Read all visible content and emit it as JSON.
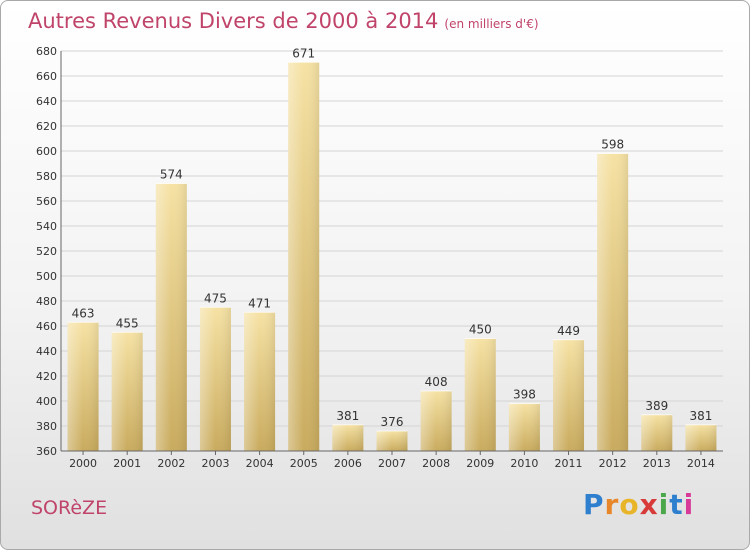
{
  "title": "Autres Revenus Divers de 2000 à 2014",
  "title_unit": "(en milliers d'€)",
  "commune": "SORèZE",
  "logo": {
    "text": "Proxiti",
    "letters": [
      "P",
      "r",
      "o",
      "x",
      "i",
      "t",
      "i"
    ],
    "colors": [
      "#2f7fcf",
      "#e8862a",
      "#e8b428",
      "#d83a3a",
      "#4aa84a",
      "#2f7fcf",
      "#d83a9a"
    ]
  },
  "colors": {
    "title": "#c0446a",
    "bar_light": "#f6e2a4",
    "bar_dark": "#c9ab5e",
    "grid": "#d4d4d4"
  },
  "chart_data": {
    "type": "bar",
    "categories": [
      "2000",
      "2001",
      "2002",
      "2003",
      "2004",
      "2005",
      "2006",
      "2007",
      "2008",
      "2009",
      "2010",
      "2011",
      "2012",
      "2013",
      "2014"
    ],
    "values": [
      463,
      455,
      574,
      475,
      471,
      671,
      381,
      376,
      408,
      450,
      398,
      449,
      598,
      389,
      381
    ],
    "ylim": [
      360,
      680
    ],
    "yticks": [
      360,
      380,
      400,
      420,
      440,
      460,
      480,
      500,
      520,
      540,
      560,
      580,
      600,
      620,
      640,
      660,
      680
    ],
    "grid": true,
    "data_labels": true
  }
}
